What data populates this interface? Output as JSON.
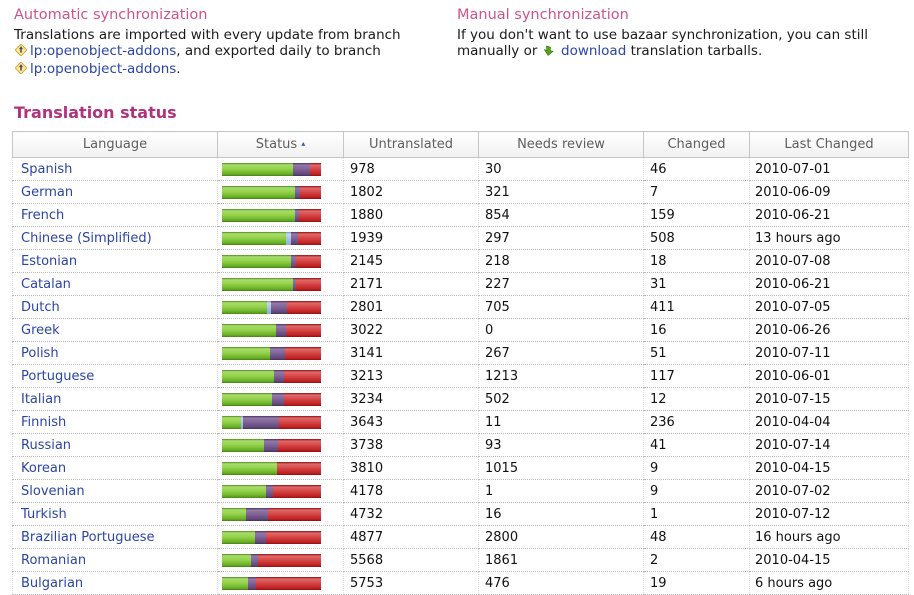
{
  "colors": {
    "section_heading": "#cd538c",
    "status_heading": "#b0337d",
    "link_blue": "#2b44a8",
    "bar_green": "#7cbf35",
    "bar_blue": "#a9c2e6",
    "bar_purple": "#7e6295",
    "bar_red": "#d44343",
    "header_text": "#5e5e5e"
  },
  "auto_sync": {
    "title": "Automatic synchronization",
    "line1": "Translations are imported with every update from branch",
    "branch_link1": "lp:openobject-addons",
    "line2_after": ", and exported daily to branch",
    "branch_link2": "lp:openobject-addons",
    "line3_after": "."
  },
  "manual_sync": {
    "title": "Manual synchronization",
    "line1": "If you don't want to use bazaar synchronization, you can still",
    "line2_before": "manually or",
    "download_link": "download",
    "line2_after": "translation tarballs."
  },
  "status_section": {
    "heading": "Translation status"
  },
  "table": {
    "headers": {
      "language": "Language",
      "status": "Status",
      "status_sort_arrow": "▴",
      "untranslated": "Untranslated",
      "needs_review": "Needs review",
      "changed": "Changed",
      "last_changed": "Last Changed"
    },
    "rows": [
      {
        "language": "Spanish",
        "bar": {
          "green": 72,
          "blue": 0,
          "purple": 17,
          "red": 11
        },
        "untranslated": "978",
        "needs_review": "30",
        "changed": "46",
        "last_changed": "2010-07-01"
      },
      {
        "language": "German",
        "bar": {
          "green": 74,
          "blue": 0,
          "purple": 5,
          "red": 21
        },
        "untranslated": "1802",
        "needs_review": "321",
        "changed": "7",
        "last_changed": "2010-06-09"
      },
      {
        "language": "French",
        "bar": {
          "green": 74,
          "blue": 0,
          "purple": 4,
          "red": 22
        },
        "untranslated": "1880",
        "needs_review": "854",
        "changed": "159",
        "last_changed": "2010-06-21"
      },
      {
        "language": "Chinese (Simplified)",
        "bar": {
          "green": 65,
          "blue": 5,
          "purple": 7,
          "red": 23
        },
        "untranslated": "1939",
        "needs_review": "297",
        "changed": "508",
        "last_changed": "13 hours ago"
      },
      {
        "language": "Estonian",
        "bar": {
          "green": 70,
          "blue": 0,
          "purple": 5,
          "red": 25
        },
        "untranslated": "2145",
        "needs_review": "218",
        "changed": "18",
        "last_changed": "2010-07-08"
      },
      {
        "language": "Catalan",
        "bar": {
          "green": 72,
          "blue": 0,
          "purple": 3,
          "red": 25
        },
        "untranslated": "2171",
        "needs_review": "227",
        "changed": "31",
        "last_changed": "2010-06-21"
      },
      {
        "language": "Dutch",
        "bar": {
          "green": 45,
          "blue": 4,
          "purple": 17,
          "red": 34
        },
        "untranslated": "2801",
        "needs_review": "705",
        "changed": "411",
        "last_changed": "2010-07-05"
      },
      {
        "language": "Greek",
        "bar": {
          "green": 55,
          "blue": 0,
          "purple": 10,
          "red": 35
        },
        "untranslated": "3022",
        "needs_review": "0",
        "changed": "16",
        "last_changed": "2010-06-26"
      },
      {
        "language": "Polish",
        "bar": {
          "green": 48,
          "blue": 0,
          "purple": 16,
          "red": 36
        },
        "untranslated": "3141",
        "needs_review": "267",
        "changed": "51",
        "last_changed": "2010-07-11"
      },
      {
        "language": "Portuguese",
        "bar": {
          "green": 53,
          "blue": 0,
          "purple": 10,
          "red": 37
        },
        "untranslated": "3213",
        "needs_review": "1213",
        "changed": "117",
        "last_changed": "2010-06-01"
      },
      {
        "language": "Italian",
        "bar": {
          "green": 51,
          "blue": 0,
          "purple": 12,
          "red": 37
        },
        "untranslated": "3234",
        "needs_review": "502",
        "changed": "12",
        "last_changed": "2010-07-15"
      },
      {
        "language": "Finnish",
        "bar": {
          "green": 19,
          "blue": 2,
          "purple": 37,
          "red": 42
        },
        "untranslated": "3643",
        "needs_review": "11",
        "changed": "236",
        "last_changed": "2010-04-04"
      },
      {
        "language": "Russian",
        "bar": {
          "green": 42,
          "blue": 0,
          "purple": 15,
          "red": 43
        },
        "untranslated": "3738",
        "needs_review": "93",
        "changed": "41",
        "last_changed": "2010-07-14"
      },
      {
        "language": "Korean",
        "bar": {
          "green": 56,
          "blue": 0,
          "purple": 0,
          "red": 44
        },
        "untranslated": "3810",
        "needs_review": "1015",
        "changed": "9",
        "last_changed": "2010-04-15"
      },
      {
        "language": "Slovenian",
        "bar": {
          "green": 44,
          "blue": 0,
          "purple": 8,
          "red": 48
        },
        "untranslated": "4178",
        "needs_review": "1",
        "changed": "9",
        "last_changed": "2010-07-02"
      },
      {
        "language": "Turkish",
        "bar": {
          "green": 24,
          "blue": 0,
          "purple": 22,
          "red": 54
        },
        "untranslated": "4732",
        "needs_review": "16",
        "changed": "1",
        "last_changed": "2010-07-12"
      },
      {
        "language": "Brazilian Portuguese",
        "bar": {
          "green": 33,
          "blue": 0,
          "purple": 11,
          "red": 56
        },
        "untranslated": "4877",
        "needs_review": "2800",
        "changed": "48",
        "last_changed": "16 hours ago"
      },
      {
        "language": "Romanian",
        "bar": {
          "green": 29,
          "blue": 0,
          "purple": 7,
          "red": 64
        },
        "untranslated": "5568",
        "needs_review": "1861",
        "changed": "2",
        "last_changed": "2010-04-15"
      },
      {
        "language": "Bulgarian",
        "bar": {
          "green": 26,
          "blue": 0,
          "purple": 8,
          "red": 66
        },
        "untranslated": "5753",
        "needs_review": "476",
        "changed": "19",
        "last_changed": "6 hours ago"
      }
    ]
  }
}
